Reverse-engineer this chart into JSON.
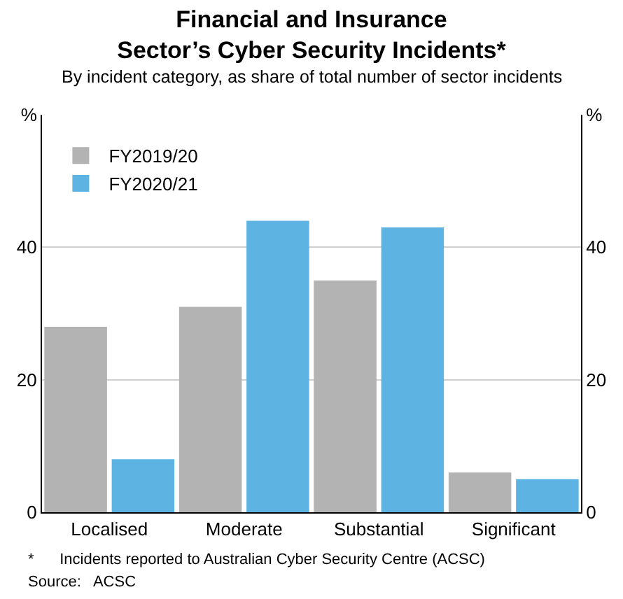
{
  "chart_data": {
    "type": "bar",
    "title": "Financial and Insurance\nSector’s Cyber Security Incidents*",
    "subtitle": "By incident category, as share of total number of sector incidents",
    "categories": [
      "Localised",
      "Moderate",
      "Substantial",
      "Significant"
    ],
    "series": [
      {
        "name": "FY2019/20",
        "color": "#b3b3b3",
        "values": [
          28,
          31,
          35,
          6
        ]
      },
      {
        "name": "FY2020/21",
        "color": "#5db4e3",
        "values": [
          8,
          44,
          43,
          5
        ]
      }
    ],
    "ylim": [
      0,
      60
    ],
    "yticks": [
      0,
      20,
      40,
      {
        "value": 60,
        "label": "%"
      }
    ],
    "y2lim": [
      0,
      60
    ],
    "y2ticks": [
      0,
      20,
      40,
      {
        "value": 60,
        "label": "%"
      }
    ],
    "grid": "y",
    "legend": "top left",
    "annotations": [
      "*      Incidents reported to Australian Cyber Security Centre (ACSC)",
      "Source:   ACSC"
    ]
  }
}
